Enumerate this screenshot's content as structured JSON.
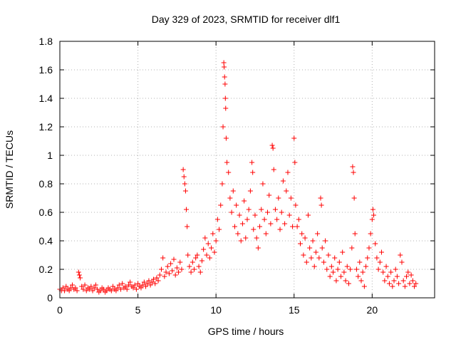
{
  "chart_data": {
    "type": "scatter",
    "title": "Day 329 of 2023, SRMTID for receiver dlf1",
    "xlabel": "GPS time / hours",
    "ylabel": "SRMTID / TECUs",
    "xlim": [
      0,
      24.0
    ],
    "ylim": [
      0,
      1.8
    ],
    "xticks": [
      0,
      5,
      10,
      15,
      20
    ],
    "yticks": [
      0,
      0.2,
      0.4,
      0.6,
      0.8,
      1,
      1.2,
      1.4,
      1.6,
      1.8
    ],
    "xtick_labels": [
      "0",
      "5",
      "10",
      "15",
      "20"
    ],
    "ytick_labels": [
      "0",
      "0.2",
      "0.4",
      "0.6",
      "0.8",
      "1",
      "1.2",
      "1.4",
      "1.6",
      "1.8"
    ],
    "grid": true,
    "marker": "+",
    "marker_color": "#ff0000",
    "series": [
      {
        "name": "SRMTID",
        "points": [
          [
            0.0,
            0.06
          ],
          [
            0.1,
            0.05
          ],
          [
            0.2,
            0.07
          ],
          [
            0.3,
            0.05
          ],
          [
            0.4,
            0.08
          ],
          [
            0.5,
            0.06
          ],
          [
            0.6,
            0.05
          ],
          [
            0.7,
            0.07
          ],
          [
            0.8,
            0.09
          ],
          [
            0.9,
            0.06
          ],
          [
            1.0,
            0.07
          ],
          [
            1.1,
            0.05
          ],
          [
            1.2,
            0.18
          ],
          [
            1.25,
            0.16
          ],
          [
            1.3,
            0.14
          ],
          [
            1.4,
            0.08
          ],
          [
            1.5,
            0.06
          ],
          [
            1.6,
            0.09
          ],
          [
            1.7,
            0.05
          ],
          [
            1.8,
            0.07
          ],
          [
            1.9,
            0.06
          ],
          [
            2.0,
            0.08
          ],
          [
            2.1,
            0.05
          ],
          [
            2.2,
            0.07
          ],
          [
            2.3,
            0.09
          ],
          [
            2.4,
            0.06
          ],
          [
            2.5,
            0.04
          ],
          [
            2.6,
            0.05
          ],
          [
            2.7,
            0.07
          ],
          [
            2.8,
            0.06
          ],
          [
            2.9,
            0.04
          ],
          [
            3.0,
            0.05
          ],
          [
            3.1,
            0.07
          ],
          [
            3.2,
            0.06
          ],
          [
            3.3,
            0.05
          ],
          [
            3.4,
            0.08
          ],
          [
            3.5,
            0.06
          ],
          [
            3.6,
            0.05
          ],
          [
            3.7,
            0.07
          ],
          [
            3.8,
            0.09
          ],
          [
            3.9,
            0.06
          ],
          [
            4.0,
            0.1
          ],
          [
            4.1,
            0.07
          ],
          [
            4.2,
            0.08
          ],
          [
            4.3,
            0.06
          ],
          [
            4.4,
            0.09
          ],
          [
            4.5,
            0.11
          ],
          [
            4.6,
            0.08
          ],
          [
            4.7,
            0.07
          ],
          [
            4.8,
            0.09
          ],
          [
            4.9,
            0.06
          ],
          [
            5.0,
            0.1
          ],
          [
            5.1,
            0.08
          ],
          [
            5.2,
            0.07
          ],
          [
            5.3,
            0.09
          ],
          [
            5.4,
            0.11
          ],
          [
            5.5,
            0.08
          ],
          [
            5.6,
            0.1
          ],
          [
            5.7,
            0.12
          ],
          [
            5.8,
            0.09
          ],
          [
            5.9,
            0.11
          ],
          [
            6.0,
            0.13
          ],
          [
            6.1,
            0.1
          ],
          [
            6.2,
            0.14
          ],
          [
            6.3,
            0.12
          ],
          [
            6.4,
            0.16
          ],
          [
            6.5,
            0.2
          ],
          [
            6.6,
            0.28
          ],
          [
            6.7,
            0.15
          ],
          [
            6.8,
            0.18
          ],
          [
            6.9,
            0.22
          ],
          [
            7.0,
            0.17
          ],
          [
            7.1,
            0.24
          ],
          [
            7.2,
            0.19
          ],
          [
            7.3,
            0.27
          ],
          [
            7.4,
            0.16
          ],
          [
            7.5,
            0.21
          ],
          [
            7.6,
            0.18
          ],
          [
            7.7,
            0.25
          ],
          [
            7.8,
            0.2
          ],
          [
            7.9,
            0.9
          ],
          [
            7.95,
            0.85
          ],
          [
            8.0,
            0.8
          ],
          [
            8.05,
            0.75
          ],
          [
            8.1,
            0.62
          ],
          [
            8.15,
            0.5
          ],
          [
            8.2,
            0.3
          ],
          [
            8.3,
            0.22
          ],
          [
            8.4,
            0.18
          ],
          [
            8.5,
            0.25
          ],
          [
            8.6,
            0.2
          ],
          [
            8.7,
            0.28
          ],
          [
            8.8,
            0.3
          ],
          [
            8.9,
            0.22
          ],
          [
            9.0,
            0.18
          ],
          [
            9.1,
            0.26
          ],
          [
            9.2,
            0.34
          ],
          [
            9.3,
            0.42
          ],
          [
            9.4,
            0.3
          ],
          [
            9.5,
            0.38
          ],
          [
            9.6,
            0.28
          ],
          [
            9.7,
            0.35
          ],
          [
            9.8,
            0.45
          ],
          [
            9.9,
            0.32
          ],
          [
            10.0,
            0.4
          ],
          [
            10.1,
            0.55
          ],
          [
            10.2,
            0.48
          ],
          [
            10.3,
            0.65
          ],
          [
            10.4,
            0.8
          ],
          [
            10.45,
            1.2
          ],
          [
            10.5,
            1.65
          ],
          [
            10.52,
            1.62
          ],
          [
            10.55,
            1.55
          ],
          [
            10.58,
            1.5
          ],
          [
            10.6,
            1.4
          ],
          [
            10.62,
            1.33
          ],
          [
            10.65,
            1.12
          ],
          [
            10.7,
            0.95
          ],
          [
            10.8,
            0.88
          ],
          [
            10.9,
            0.7
          ],
          [
            11.0,
            0.6
          ],
          [
            11.1,
            0.75
          ],
          [
            11.2,
            0.5
          ],
          [
            11.3,
            0.65
          ],
          [
            11.4,
            0.45
          ],
          [
            11.5,
            0.58
          ],
          [
            11.6,
            0.4
          ],
          [
            11.7,
            0.52
          ],
          [
            11.8,
            0.68
          ],
          [
            11.9,
            0.42
          ],
          [
            12.0,
            0.55
          ],
          [
            12.1,
            0.62
          ],
          [
            12.2,
            0.75
          ],
          [
            12.3,
            0.95
          ],
          [
            12.35,
            0.88
          ],
          [
            12.4,
            0.48
          ],
          [
            12.5,
            0.58
          ],
          [
            12.6,
            0.42
          ],
          [
            12.7,
            0.35
          ],
          [
            12.8,
            0.5
          ],
          [
            12.9,
            0.62
          ],
          [
            13.0,
            0.8
          ],
          [
            13.1,
            0.55
          ],
          [
            13.2,
            0.45
          ],
          [
            13.3,
            0.6
          ],
          [
            13.4,
            0.72
          ],
          [
            13.5,
            0.52
          ],
          [
            13.6,
            1.07
          ],
          [
            13.65,
            1.05
          ],
          [
            13.7,
            0.9
          ],
          [
            13.8,
            0.62
          ],
          [
            13.9,
            0.55
          ],
          [
            14.0,
            0.7
          ],
          [
            14.1,
            0.48
          ],
          [
            14.2,
            0.6
          ],
          [
            14.3,
            0.82
          ],
          [
            14.4,
            0.52
          ],
          [
            14.5,
            0.75
          ],
          [
            14.6,
            0.88
          ],
          [
            14.7,
            0.58
          ],
          [
            14.8,
            0.7
          ],
          [
            14.9,
            0.5
          ],
          [
            15.0,
            1.12
          ],
          [
            15.05,
            0.95
          ],
          [
            15.1,
            0.65
          ],
          [
            15.2,
            0.5
          ],
          [
            15.3,
            0.55
          ],
          [
            15.4,
            0.38
          ],
          [
            15.5,
            0.45
          ],
          [
            15.6,
            0.3
          ],
          [
            15.7,
            0.42
          ],
          [
            15.8,
            0.25
          ],
          [
            15.9,
            0.58
          ],
          [
            16.0,
            0.35
          ],
          [
            16.1,
            0.28
          ],
          [
            16.2,
            0.4
          ],
          [
            16.3,
            0.22
          ],
          [
            16.4,
            0.32
          ],
          [
            16.5,
            0.45
          ],
          [
            16.6,
            0.28
          ],
          [
            16.7,
            0.7
          ],
          [
            16.75,
            0.65
          ],
          [
            16.8,
            0.35
          ],
          [
            16.9,
            0.25
          ],
          [
            17.0,
            0.4
          ],
          [
            17.1,
            0.2
          ],
          [
            17.2,
            0.3
          ],
          [
            17.3,
            0.15
          ],
          [
            17.4,
            0.22
          ],
          [
            17.5,
            0.18
          ],
          [
            17.6,
            0.28
          ],
          [
            17.7,
            0.12
          ],
          [
            17.8,
            0.2
          ],
          [
            17.9,
            0.25
          ],
          [
            18.0,
            0.15
          ],
          [
            18.1,
            0.32
          ],
          [
            18.2,
            0.18
          ],
          [
            18.3,
            0.12
          ],
          [
            18.4,
            0.22
          ],
          [
            18.5,
            0.1
          ],
          [
            18.6,
            0.2
          ],
          [
            18.7,
            0.35
          ],
          [
            18.75,
            0.92
          ],
          [
            18.8,
            0.88
          ],
          [
            18.85,
            0.7
          ],
          [
            18.9,
            0.45
          ],
          [
            19.0,
            0.2
          ],
          [
            19.1,
            0.15
          ],
          [
            19.2,
            0.25
          ],
          [
            19.3,
            0.12
          ],
          [
            19.4,
            0.18
          ],
          [
            19.5,
            0.08
          ],
          [
            19.6,
            0.22
          ],
          [
            19.7,
            0.28
          ],
          [
            19.8,
            0.35
          ],
          [
            19.9,
            0.45
          ],
          [
            20.0,
            0.55
          ],
          [
            20.05,
            0.62
          ],
          [
            20.1,
            0.58
          ],
          [
            20.2,
            0.38
          ],
          [
            20.3,
            0.28
          ],
          [
            20.4,
            0.2
          ],
          [
            20.5,
            0.25
          ],
          [
            20.6,
            0.32
          ],
          [
            20.7,
            0.18
          ],
          [
            20.8,
            0.12
          ],
          [
            20.9,
            0.22
          ],
          [
            21.0,
            0.15
          ],
          [
            21.1,
            0.1
          ],
          [
            21.2,
            0.18
          ],
          [
            21.3,
            0.08
          ],
          [
            21.4,
            0.12
          ],
          [
            21.5,
            0.2
          ],
          [
            21.6,
            0.15
          ],
          [
            21.7,
            0.1
          ],
          [
            21.8,
            0.3
          ],
          [
            21.9,
            0.25
          ],
          [
            22.0,
            0.12
          ],
          [
            22.1,
            0.08
          ],
          [
            22.2,
            0.15
          ],
          [
            22.3,
            0.18
          ],
          [
            22.4,
            0.1
          ],
          [
            22.5,
            0.16
          ],
          [
            22.6,
            0.12
          ],
          [
            22.7,
            0.08
          ],
          [
            22.8,
            0.1
          ]
        ]
      }
    ]
  }
}
